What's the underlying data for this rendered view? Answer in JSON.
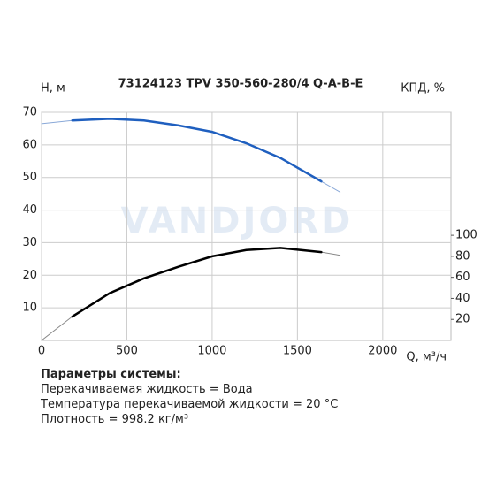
{
  "chart_data": {
    "type": "line",
    "title": "73124123 TPV 350-560-280/4 Q-A-B-E",
    "y_label": "H, м",
    "y2_label": "КПД, %",
    "x_label": "Q, м³/ч",
    "watermark": "VANDJORD",
    "x": [
      0,
      180,
      400,
      600,
      800,
      1000,
      1200,
      1400,
      1640,
      1750
    ],
    "series": [
      {
        "color": "#8aa9d8",
        "width": 1,
        "values": [
          66.5,
          67.5,
          68,
          67.5,
          66,
          64,
          60.5,
          56,
          48.8,
          45.5
        ]
      },
      {
        "color": "#1f5fbf",
        "width": 2.5,
        "values": [
          null,
          67.5,
          68,
          67.5,
          66,
          64,
          60.5,
          56,
          48.8,
          null
        ]
      },
      {
        "color": "#888888",
        "width": 1,
        "axis": "y2",
        "values": [
          0,
          22.7,
          45,
          59,
          70,
          80,
          86,
          88,
          84,
          81
        ]
      },
      {
        "color": "#000000",
        "width": 2.5,
        "axis": "y2",
        "values": [
          null,
          22.7,
          45,
          59,
          70,
          80,
          86,
          88,
          84,
          null
        ]
      }
    ],
    "xlim": [
      0,
      2400
    ],
    "xticks": [
      0,
      500,
      1000,
      1500,
      2000
    ],
    "ylim": [
      0,
      70
    ],
    "yticks": [
      10,
      20,
      30,
      40,
      50,
      60,
      70
    ],
    "y2lim": [
      0,
      217
    ],
    "y2ticks": [
      20,
      40,
      60,
      80,
      100
    ],
    "grid": true
  },
  "parameters": {
    "title": "Параметры системы:",
    "lines": [
      "Перекачиваемая жидкость = Вода",
      "Температура перекачиваемой жидкости = 20 °C",
      "Плотность = 998.2 кг/м³"
    ]
  }
}
